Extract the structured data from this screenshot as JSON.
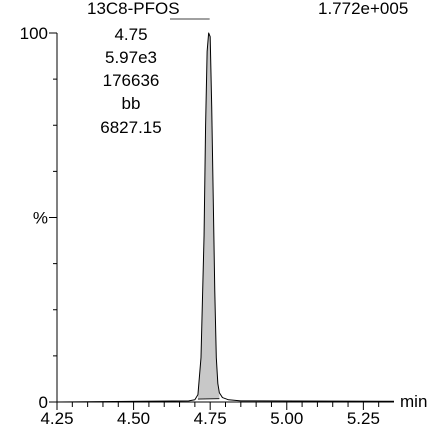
{
  "chart_data": {
    "type": "line",
    "compound": "13C8-PFOS",
    "peak_annotation": [
      "4.75",
      "5.97e3",
      "176636",
      "bb",
      "6827.15"
    ],
    "intensity": "1.772e+005",
    "xlabel": "min",
    "ylabel": "%",
    "xlim": [
      4.25,
      5.35
    ],
    "ylim": [
      0,
      100
    ],
    "x_ticks": [
      "4.25",
      "4.50",
      "4.75",
      "5.00",
      "5.25"
    ],
    "x_tick_values": [
      4.25,
      4.5,
      4.75,
      5.0,
      5.25
    ],
    "y_ticks": [
      "0",
      "%",
      "100"
    ],
    "y_tick_values": [
      0,
      50,
      100
    ],
    "peak": {
      "retention_time": 4.75,
      "start": 4.71,
      "end": 4.78,
      "integration_baseline": [
        [
          4.71,
          0.8
        ],
        [
          4.78,
          0.9
        ]
      ]
    },
    "series": [
      {
        "x": [
          4.25,
          4.68,
          4.7,
          4.71,
          4.72,
          4.73,
          4.735,
          4.74,
          4.745,
          4.75,
          4.755,
          4.76,
          4.765,
          4.77,
          4.775,
          4.78,
          4.79,
          4.81,
          4.85,
          5.35
        ],
        "y": [
          0,
          0.3,
          0.6,
          2,
          12,
          45,
          75,
          95,
          100,
          99,
          80,
          55,
          30,
          12,
          5,
          2.5,
          1.2,
          0.6,
          0.3,
          0.2
        ]
      }
    ],
    "colors": {
      "trace": "#000000",
      "peak_fill": "#c8c8c8"
    },
    "grid": false
  }
}
